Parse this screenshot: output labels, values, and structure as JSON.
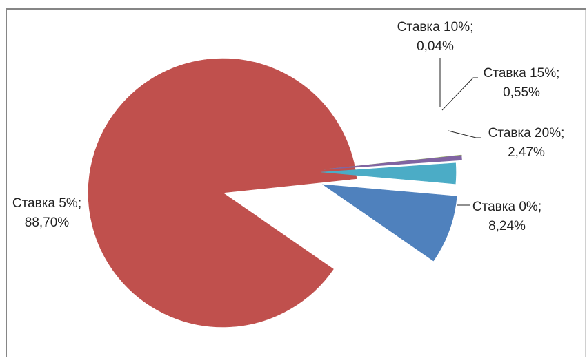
{
  "chart_data": {
    "type": "pie",
    "title": "",
    "exploded": true,
    "legend": "none",
    "slices": [
      {
        "name": "Ставка 0%",
        "value": 8.24,
        "value_label": "8,24%",
        "color": "#4f81bd"
      },
      {
        "name": "Ставка 5%",
        "value": 88.7,
        "value_label": "88,70%",
        "color": "#c0504d"
      },
      {
        "name": "Ставка 10%",
        "value": 0.04,
        "value_label": "0,04%",
        "color": "#9bbb59"
      },
      {
        "name": "Ставка 15%",
        "value": 0.55,
        "value_label": "0,55%",
        "color": "#8064a2"
      },
      {
        "name": "Ставка 20%",
        "value": 2.47,
        "value_label": "2,47%",
        "color": "#4bacc6"
      }
    ]
  }
}
